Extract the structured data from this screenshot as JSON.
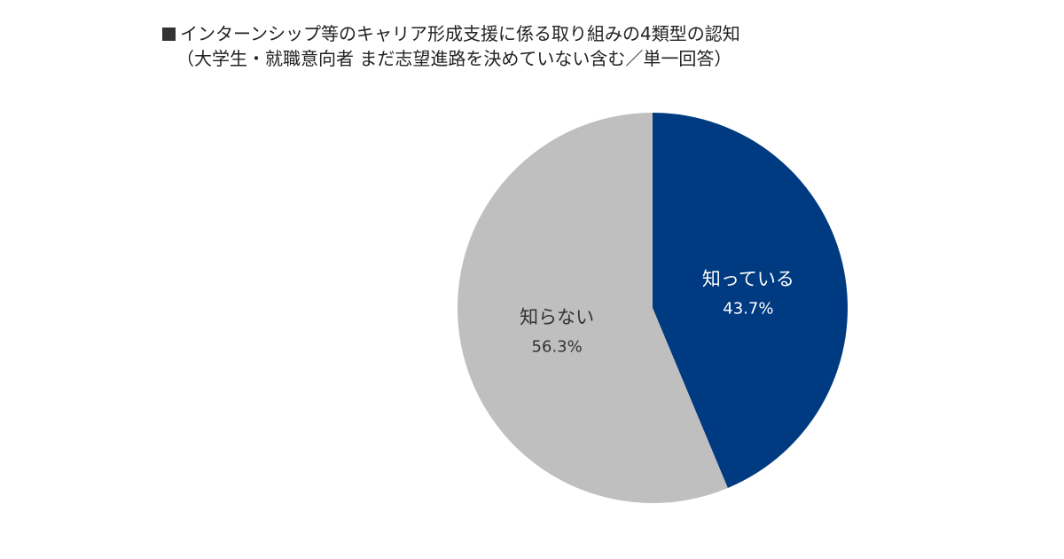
{
  "title": {
    "marker": "■",
    "line1": "インターンシップ等のキャリア形成支援に係る取り組みの4類型の認知",
    "line2": "（大学生・就職意向者 まだ志望進路を決めていない含む／単一回答）"
  },
  "chart_data": {
    "type": "pie",
    "title": "インターンシップ等のキャリア形成支援に係る取り組みの4類型の認知",
    "subtitle": "（大学生・就職意向者 まだ志望進路を決めていない含む／単一回答）",
    "unit": "%",
    "slices": [
      {
        "label": "知っている",
        "value": 43.7,
        "display": "43.7%",
        "color": "#003A80",
        "label_color": "#ffffff"
      },
      {
        "label": "知らない",
        "value": 56.3,
        "display": "56.3%",
        "color": "#BFBFBF",
        "label_color": "#333333"
      }
    ],
    "start_angle": "12 o'clock",
    "direction": "clockwise",
    "legend": "none"
  }
}
